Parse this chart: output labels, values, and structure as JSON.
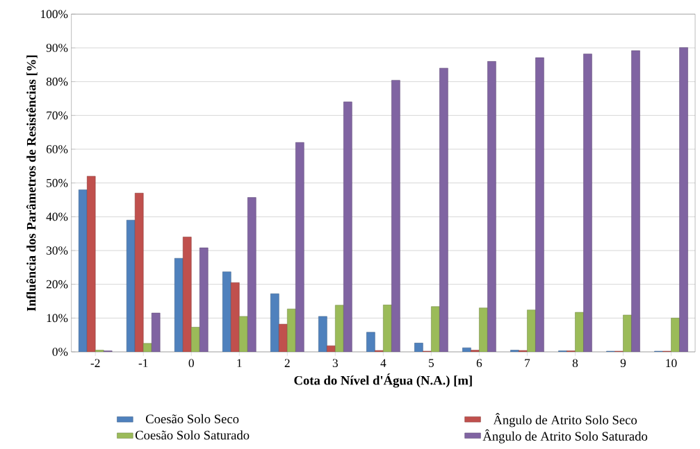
{
  "chart_data": {
    "type": "bar",
    "xlabel": "Cota do Nível d'Água (N.A.) [m]",
    "ylabel": "Influência dos Parâmetros de Resistências [%]",
    "categories": [
      "-2",
      "-1",
      "0",
      "1",
      "2",
      "3",
      "4",
      "5",
      "6",
      "7",
      "8",
      "9",
      "10"
    ],
    "series": [
      {
        "name": "Coesão Solo Seco",
        "color": "#4f81bd",
        "values": [
          48,
          39,
          27.7,
          23.7,
          17.2,
          10.5,
          5.8,
          2.6,
          1.2,
          0.5,
          0.3,
          0.2,
          0.2
        ]
      },
      {
        "name": "Ângulo de Atrito Solo Seco",
        "color": "#c0504d",
        "values": [
          52,
          47,
          34,
          20.5,
          8.2,
          1.8,
          0.4,
          0.2,
          0.5,
          0.4,
          0.3,
          0.2,
          0.2
        ]
      },
      {
        "name": "Coesão Solo Saturado",
        "color": "#9bbb59",
        "values": [
          0.5,
          2.5,
          7.3,
          10.5,
          12.7,
          13.8,
          13.9,
          13.4,
          13,
          12.4,
          11.7,
          10.9,
          10
        ]
      },
      {
        "name": "Ângulo de Atrito Solo Saturado",
        "color": "#8064a2",
        "values": [
          0.3,
          11.5,
          30.8,
          45.7,
          62,
          74,
          80.4,
          84,
          86,
          87.1,
          88.2,
          89.2,
          90.1
        ]
      }
    ],
    "ylim": [
      0,
      100
    ],
    "yticks": [
      {
        "value": 0,
        "label": "0%"
      },
      {
        "value": 10,
        "label": "10%"
      },
      {
        "value": 20,
        "label": "20%"
      },
      {
        "value": 30,
        "label": "30%"
      },
      {
        "value": 40,
        "label": "40%"
      },
      {
        "value": 50,
        "label": "50%"
      },
      {
        "value": 60,
        "label": "60%"
      },
      {
        "value": 70,
        "label": "70%"
      },
      {
        "value": 80,
        "label": "80%"
      },
      {
        "value": 90,
        "label": "90%"
      },
      {
        "value": 100,
        "label": "100%"
      }
    ],
    "grid": "y",
    "legend": "bottom"
  }
}
